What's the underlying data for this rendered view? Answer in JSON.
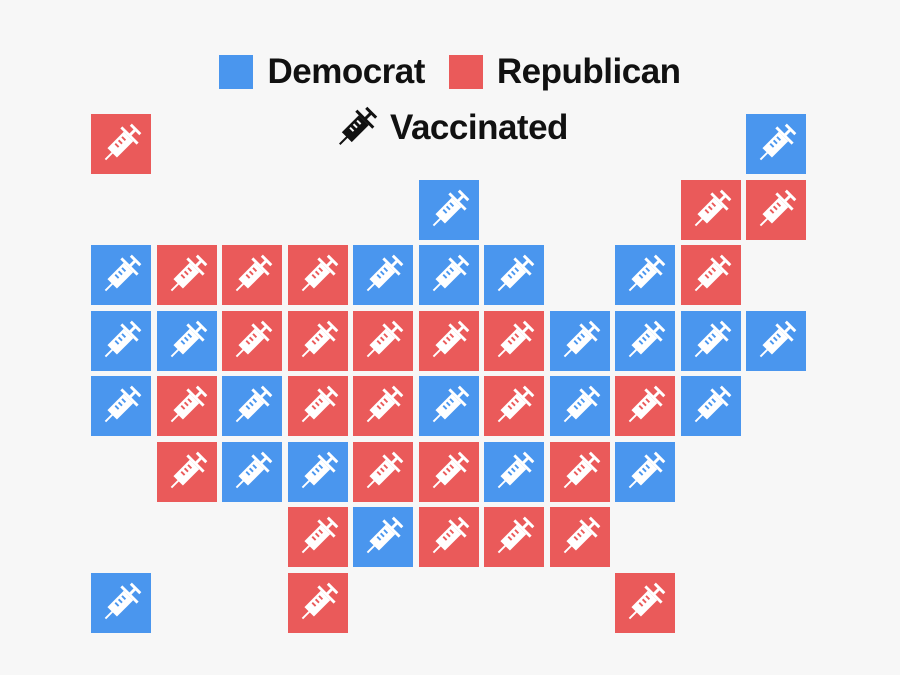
{
  "legend": {
    "democrat": {
      "label": "Democrat",
      "color": "#4a96ee"
    },
    "republican": {
      "label": "Republican",
      "color": "#ea5a5a"
    },
    "vaccinated": {
      "label": "Vaccinated",
      "icon": "syringe-icon"
    }
  },
  "tiles": [
    {
      "row": 0,
      "col": 0,
      "party": "republican",
      "vaccinated": true
    },
    {
      "row": 0,
      "col": 10,
      "party": "democrat",
      "vaccinated": true
    },
    {
      "row": 1,
      "col": 5,
      "party": "democrat",
      "vaccinated": true
    },
    {
      "row": 1,
      "col": 9,
      "party": "republican",
      "vaccinated": true
    },
    {
      "row": 1,
      "col": 10,
      "party": "republican",
      "vaccinated": true
    },
    {
      "row": 2,
      "col": 0,
      "party": "democrat",
      "vaccinated": true
    },
    {
      "row": 2,
      "col": 1,
      "party": "republican",
      "vaccinated": true
    },
    {
      "row": 2,
      "col": 2,
      "party": "republican",
      "vaccinated": true
    },
    {
      "row": 2,
      "col": 3,
      "party": "republican",
      "vaccinated": true
    },
    {
      "row": 2,
      "col": 4,
      "party": "democrat",
      "vaccinated": true
    },
    {
      "row": 2,
      "col": 5,
      "party": "democrat",
      "vaccinated": true
    },
    {
      "row": 2,
      "col": 6,
      "party": "democrat",
      "vaccinated": true
    },
    {
      "row": 2,
      "col": 8,
      "party": "democrat",
      "vaccinated": true
    },
    {
      "row": 2,
      "col": 9,
      "party": "republican",
      "vaccinated": true
    },
    {
      "row": 3,
      "col": 0,
      "party": "democrat",
      "vaccinated": true
    },
    {
      "row": 3,
      "col": 1,
      "party": "democrat",
      "vaccinated": true
    },
    {
      "row": 3,
      "col": 2,
      "party": "republican",
      "vaccinated": true
    },
    {
      "row": 3,
      "col": 3,
      "party": "republican",
      "vaccinated": true
    },
    {
      "row": 3,
      "col": 4,
      "party": "republican",
      "vaccinated": true
    },
    {
      "row": 3,
      "col": 5,
      "party": "republican",
      "vaccinated": true
    },
    {
      "row": 3,
      "col": 6,
      "party": "republican",
      "vaccinated": true
    },
    {
      "row": 3,
      "col": 7,
      "party": "democrat",
      "vaccinated": true
    },
    {
      "row": 3,
      "col": 8,
      "party": "democrat",
      "vaccinated": true
    },
    {
      "row": 3,
      "col": 9,
      "party": "democrat",
      "vaccinated": true
    },
    {
      "row": 3,
      "col": 10,
      "party": "democrat",
      "vaccinated": true
    },
    {
      "row": 4,
      "col": 0,
      "party": "democrat",
      "vaccinated": true
    },
    {
      "row": 4,
      "col": 1,
      "party": "republican",
      "vaccinated": true
    },
    {
      "row": 4,
      "col": 2,
      "party": "democrat",
      "vaccinated": true
    },
    {
      "row": 4,
      "col": 3,
      "party": "republican",
      "vaccinated": true
    },
    {
      "row": 4,
      "col": 4,
      "party": "republican",
      "vaccinated": true
    },
    {
      "row": 4,
      "col": 5,
      "party": "democrat",
      "vaccinated": true
    },
    {
      "row": 4,
      "col": 6,
      "party": "republican",
      "vaccinated": true
    },
    {
      "row": 4,
      "col": 7,
      "party": "democrat",
      "vaccinated": true
    },
    {
      "row": 4,
      "col": 8,
      "party": "republican",
      "vaccinated": true
    },
    {
      "row": 4,
      "col": 9,
      "party": "democrat",
      "vaccinated": true
    },
    {
      "row": 5,
      "col": 1,
      "party": "republican",
      "vaccinated": true
    },
    {
      "row": 5,
      "col": 2,
      "party": "democrat",
      "vaccinated": true
    },
    {
      "row": 5,
      "col": 3,
      "party": "democrat",
      "vaccinated": true
    },
    {
      "row": 5,
      "col": 4,
      "party": "republican",
      "vaccinated": true
    },
    {
      "row": 5,
      "col": 5,
      "party": "republican",
      "vaccinated": true
    },
    {
      "row": 5,
      "col": 6,
      "party": "democrat",
      "vaccinated": true
    },
    {
      "row": 5,
      "col": 7,
      "party": "republican",
      "vaccinated": true
    },
    {
      "row": 5,
      "col": 8,
      "party": "democrat",
      "vaccinated": true
    },
    {
      "row": 6,
      "col": 3,
      "party": "republican",
      "vaccinated": true
    },
    {
      "row": 6,
      "col": 4,
      "party": "democrat",
      "vaccinated": true
    },
    {
      "row": 6,
      "col": 5,
      "party": "republican",
      "vaccinated": true
    },
    {
      "row": 6,
      "col": 6,
      "party": "republican",
      "vaccinated": true
    },
    {
      "row": 6,
      "col": 7,
      "party": "republican",
      "vaccinated": true
    },
    {
      "row": 7,
      "col": 0,
      "party": "democrat",
      "vaccinated": true
    },
    {
      "row": 7,
      "col": 3,
      "party": "republican",
      "vaccinated": true
    },
    {
      "row": 7,
      "col": 8,
      "party": "republican",
      "vaccinated": true
    }
  ]
}
